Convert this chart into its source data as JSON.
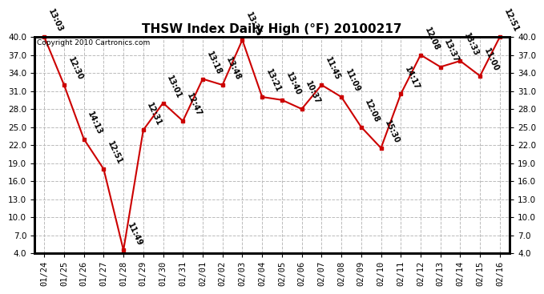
{
  "title": "THSW Index Daily High (°F) 20100217",
  "copyright": "Copyright 2010 Cartronics.com",
  "dates": [
    "01/24",
    "01/25",
    "01/26",
    "01/27",
    "01/28",
    "01/29",
    "01/30",
    "01/31",
    "02/01",
    "02/02",
    "02/03",
    "02/04",
    "02/05",
    "02/06",
    "02/07",
    "02/08",
    "02/09",
    "02/10",
    "02/11",
    "02/12",
    "02/13",
    "02/14",
    "02/15",
    "02/16"
  ],
  "values": [
    40.0,
    32.0,
    23.0,
    18.0,
    4.5,
    24.5,
    29.0,
    26.0,
    33.0,
    32.0,
    39.5,
    30.0,
    29.5,
    28.0,
    32.0,
    30.0,
    25.0,
    21.5,
    30.5,
    37.0,
    35.0,
    36.0,
    33.5,
    40.0
  ],
  "times": [
    "13:03",
    "12:30",
    "14:13",
    "12:51",
    "11:49",
    "12:31",
    "13:01",
    "12:47",
    "13:18",
    "13:48",
    "13:35",
    "13:21",
    "13:40",
    "10:37",
    "11:45",
    "11:09",
    "12:08",
    "15:30",
    "14:17",
    "12:08",
    "13:37",
    "13:33",
    "11:00",
    "12:51"
  ],
  "ylim": [
    4.0,
    40.0
  ],
  "yticks": [
    4.0,
    7.0,
    10.0,
    13.0,
    16.0,
    19.0,
    22.0,
    25.0,
    28.0,
    31.0,
    34.0,
    37.0,
    40.0
  ],
  "line_color": "#cc0000",
  "marker_color": "#cc0000",
  "bg_color": "#ffffff",
  "grid_color": "#bbbbbb",
  "title_fontsize": 11,
  "label_fontsize": 7,
  "tick_fontsize": 7.5,
  "copyright_fontsize": 6.5
}
